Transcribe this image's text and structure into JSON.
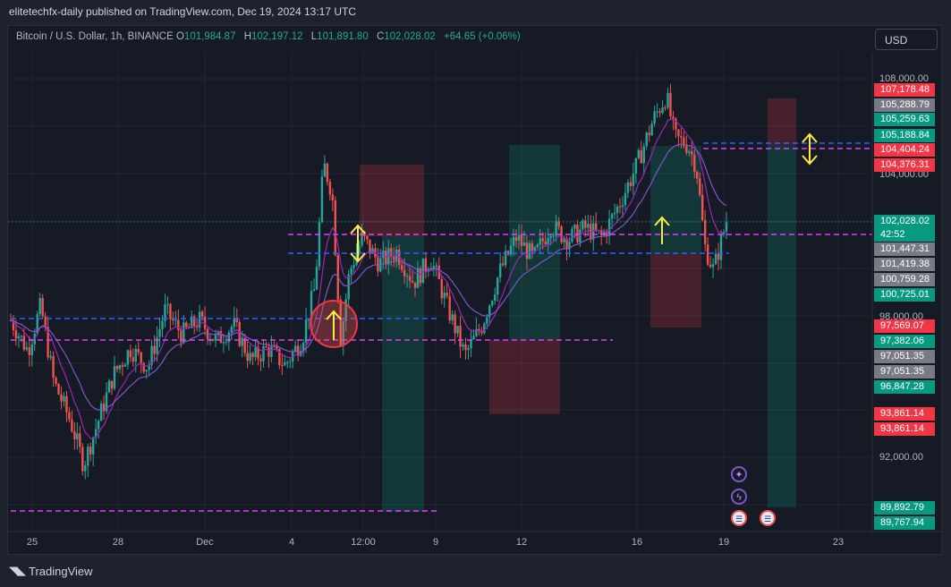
{
  "publish_line": "elitetechfx-daily published on TradingView.com, Dec 19, 2024 13:17 UTC",
  "symbol": {
    "title": "Bitcoin / U.S. Dollar, 1h, BINANCE",
    "open_key": "O",
    "open": "101,984.87",
    "high_key": "H",
    "high": "102,197.12",
    "low_key": "L",
    "low": "101,891.80",
    "close_key": "C",
    "close": "102,028.02",
    "change": "+64.65 (+0.06%)"
  },
  "currency_button": "USD",
  "axis_prices": [
    "108,000.00",
    "104,000.00",
    "98,000.00",
    "92,000.00"
  ],
  "price_badges": [
    {
      "label": "107,178.48",
      "color": "#f23645"
    },
    {
      "label": "105,288.79",
      "color": "#787b86"
    },
    {
      "label": "105,259.63",
      "color": "#089981"
    },
    {
      "label": "105,188.84",
      "color": "#089981"
    },
    {
      "label": "104,404.24",
      "color": "#f23645"
    },
    {
      "label": "104,376.31",
      "color": "#f23645"
    },
    {
      "label": "102,028.02",
      "sub": "42:52",
      "color": "#089981"
    },
    {
      "label": "101,447.31",
      "color": "#787b86"
    },
    {
      "label": "101,419.38",
      "color": "#787b86"
    },
    {
      "label": "100,759.28",
      "color": "#787b86"
    },
    {
      "label": "100,725.01",
      "color": "#089981"
    },
    {
      "label": "97,569.07",
      "color": "#f23645"
    },
    {
      "label": "97,382.06",
      "color": "#089981"
    },
    {
      "label": "97,051.35",
      "color": "#787b86"
    },
    {
      "label": "97,051.35",
      "color": "#787b86"
    },
    {
      "label": "96,847.28",
      "color": "#089981"
    },
    {
      "label": "93,861.14",
      "color": "#f23645"
    },
    {
      "label": "93,861.14",
      "color": "#f23645"
    },
    {
      "label": "89,892.79",
      "color": "#089981"
    },
    {
      "label": "89,767.94",
      "color": "#089981"
    }
  ],
  "time_labels": [
    "25",
    "28",
    "Dec",
    "4",
    "12:00",
    "9",
    "12",
    "16",
    "19",
    "23"
  ],
  "brand": "TradingView",
  "colors": {
    "up": "#26a69a",
    "down": "#ef5350",
    "ema_fast": "#9c27b0",
    "ema_slow": "#7e57c2",
    "blue_level": "#2962ff",
    "magenta_level": "#e040fb",
    "arrow": "#ffeb3b"
  },
  "icons": [
    "sparkle-icon",
    "lightning-icon",
    "us-flag-icon",
    "us-flag-icon"
  ],
  "chart_data": {
    "type": "candlestick",
    "interval": "1h",
    "ylim": [
      88500,
      109000
    ],
    "path": [
      [
        0,
        97800
      ],
      [
        0.02,
        96500
      ],
      [
        0.035,
        98400
      ],
      [
        0.05,
        95200
      ],
      [
        0.07,
        93500
      ],
      [
        0.085,
        91700
      ],
      [
        0.1,
        93300
      ],
      [
        0.12,
        95500
      ],
      [
        0.14,
        96600
      ],
      [
        0.16,
        95800
      ],
      [
        0.18,
        98200
      ],
      [
        0.2,
        97200
      ],
      [
        0.22,
        97800
      ],
      [
        0.24,
        96900
      ],
      [
        0.26,
        97600
      ],
      [
        0.28,
        96100
      ],
      [
        0.3,
        96600
      ],
      [
        0.32,
        95900
      ],
      [
        0.34,
        97000
      ],
      [
        0.355,
        99200
      ],
      [
        0.365,
        104400
      ],
      [
        0.375,
        103200
      ],
      [
        0.385,
        97000
      ],
      [
        0.395,
        99800
      ],
      [
        0.41,
        101300
      ],
      [
        0.43,
        100200
      ],
      [
        0.45,
        100700
      ],
      [
        0.47,
        99400
      ],
      [
        0.49,
        100400
      ],
      [
        0.51,
        98300
      ],
      [
        0.53,
        96300
      ],
      [
        0.55,
        97600
      ],
      [
        0.57,
        99800
      ],
      [
        0.59,
        101300
      ],
      [
        0.61,
        100400
      ],
      [
        0.63,
        101800
      ],
      [
        0.65,
        101200
      ],
      [
        0.67,
        101700
      ],
      [
        0.69,
        101300
      ],
      [
        0.71,
        102700
      ],
      [
        0.73,
        104300
      ],
      [
        0.75,
        106300
      ],
      [
        0.765,
        107300
      ],
      [
        0.775,
        105500
      ],
      [
        0.79,
        105200
      ],
      [
        0.8,
        104300
      ],
      [
        0.81,
        100900
      ],
      [
        0.82,
        99900
      ],
      [
        0.835,
        102000
      ]
    ],
    "levels": [
      {
        "price": 101419,
        "style": "dashed-blue"
      },
      {
        "price": 102028,
        "style": "dashed-magenta"
      },
      {
        "price": 97569,
        "style": "dashed-blue"
      },
      {
        "price": 97051,
        "style": "dashed-magenta"
      },
      {
        "price": 104404,
        "style": "dashed-blue"
      },
      {
        "price": 104376,
        "style": "dashed-magenta"
      },
      {
        "price": 89767,
        "style": "dashed-magenta"
      }
    ],
    "positions": [
      {
        "stop": 104404,
        "entry": 101419,
        "target": 97051
      },
      {
        "stop": 93861,
        "entry": 97051,
        "target": 105259
      },
      {
        "stop": 97382,
        "entry": 101447,
        "target": 105188
      },
      {
        "stop": 107178,
        "entry": 104376,
        "target": 89892
      }
    ]
  }
}
